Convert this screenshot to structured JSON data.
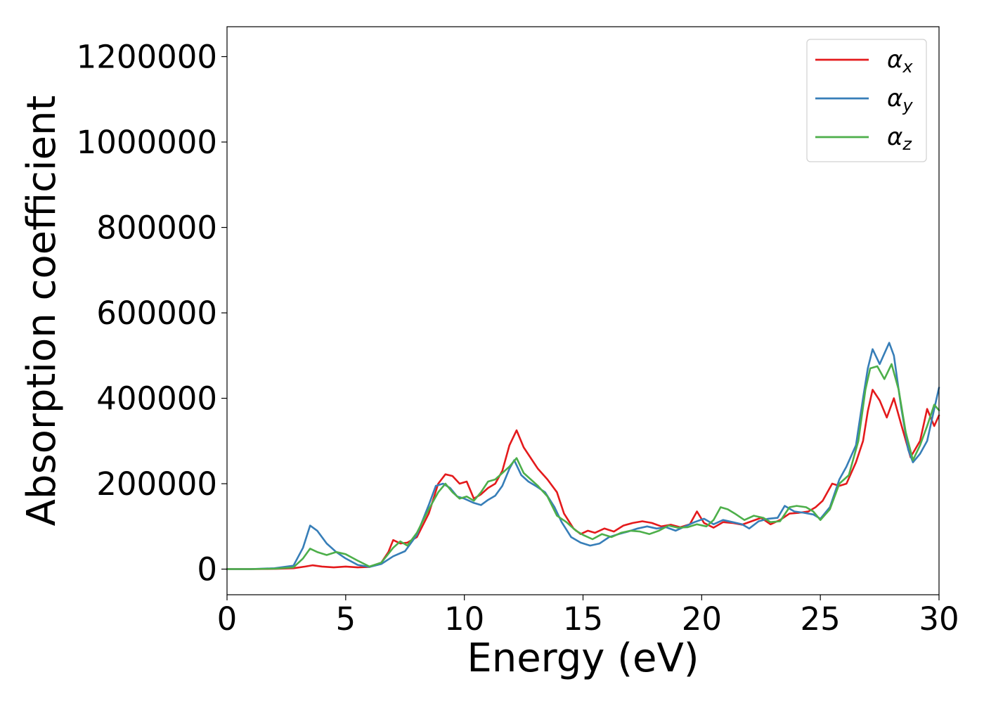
{
  "chart_data": {
    "type": "line",
    "title": "",
    "xlabel": "Energy (eV)",
    "ylabel": "Absorption coefficient",
    "xlim": [
      0,
      30
    ],
    "ylim": [
      -60000,
      1270000
    ],
    "x_ticks": [
      0,
      5,
      10,
      15,
      20,
      25,
      30
    ],
    "x_tick_labels": [
      "0",
      "5",
      "10",
      "15",
      "20",
      "25",
      "30"
    ],
    "y_ticks": [
      0,
      200000,
      400000,
      600000,
      800000,
      1000000,
      1200000
    ],
    "y_tick_labels": [
      "0",
      "200000",
      "400000",
      "600000",
      "800000",
      "1000000",
      "1200000"
    ],
    "grid": false,
    "legend_position": "top-right",
    "series": [
      {
        "name": "αx",
        "base": "α",
        "sub": "x",
        "color": "#e41a1c",
        "points": [
          [
            0,
            0
          ],
          [
            1,
            0
          ],
          [
            2,
            500
          ],
          [
            2.8,
            2000
          ],
          [
            3.3,
            6000
          ],
          [
            3.6,
            9000
          ],
          [
            4.0,
            6000
          ],
          [
            4.5,
            4000
          ],
          [
            5.0,
            6000
          ],
          [
            5.5,
            4000
          ],
          [
            6.0,
            5000
          ],
          [
            6.5,
            15000
          ],
          [
            6.8,
            40000
          ],
          [
            7.0,
            68000
          ],
          [
            7.3,
            60000
          ],
          [
            7.6,
            62000
          ],
          [
            8.0,
            75000
          ],
          [
            8.5,
            130000
          ],
          [
            8.9,
            200000
          ],
          [
            9.2,
            222000
          ],
          [
            9.5,
            218000
          ],
          [
            9.8,
            200000
          ],
          [
            10.1,
            205000
          ],
          [
            10.4,
            165000
          ],
          [
            10.7,
            175000
          ],
          [
            11.0,
            190000
          ],
          [
            11.3,
            200000
          ],
          [
            11.6,
            230000
          ],
          [
            11.9,
            290000
          ],
          [
            12.2,
            325000
          ],
          [
            12.5,
            285000
          ],
          [
            12.8,
            260000
          ],
          [
            13.1,
            235000
          ],
          [
            13.5,
            210000
          ],
          [
            13.9,
            180000
          ],
          [
            14.2,
            130000
          ],
          [
            14.6,
            95000
          ],
          [
            14.9,
            82000
          ],
          [
            15.2,
            90000
          ],
          [
            15.5,
            85000
          ],
          [
            15.9,
            95000
          ],
          [
            16.3,
            88000
          ],
          [
            16.7,
            102000
          ],
          [
            17.1,
            108000
          ],
          [
            17.5,
            112000
          ],
          [
            17.9,
            108000
          ],
          [
            18.3,
            100000
          ],
          [
            18.7,
            104000
          ],
          [
            19.1,
            98000
          ],
          [
            19.5,
            105000
          ],
          [
            19.8,
            135000
          ],
          [
            20.1,
            108000
          ],
          [
            20.5,
            97000
          ],
          [
            20.9,
            110000
          ],
          [
            21.3,
            108000
          ],
          [
            21.7,
            104000
          ],
          [
            22.1,
            112000
          ],
          [
            22.5,
            120000
          ],
          [
            22.9,
            105000
          ],
          [
            23.3,
            115000
          ],
          [
            23.7,
            130000
          ],
          [
            24.1,
            132000
          ],
          [
            24.5,
            135000
          ],
          [
            24.8,
            145000
          ],
          [
            25.1,
            160000
          ],
          [
            25.5,
            200000
          ],
          [
            25.8,
            195000
          ],
          [
            26.1,
            200000
          ],
          [
            26.5,
            250000
          ],
          [
            26.8,
            300000
          ],
          [
            27.0,
            370000
          ],
          [
            27.2,
            420000
          ],
          [
            27.5,
            395000
          ],
          [
            27.8,
            355000
          ],
          [
            28.1,
            400000
          ],
          [
            28.4,
            340000
          ],
          [
            28.8,
            262000
          ],
          [
            29.2,
            300000
          ],
          [
            29.5,
            375000
          ],
          [
            29.8,
            335000
          ],
          [
            30.0,
            360000
          ]
        ]
      },
      {
        "name": "αy",
        "base": "α",
        "sub": "y",
        "color": "#377eb8",
        "points": [
          [
            0,
            0
          ],
          [
            1,
            0
          ],
          [
            2,
            2000
          ],
          [
            2.8,
            8000
          ],
          [
            3.2,
            50000
          ],
          [
            3.5,
            102000
          ],
          [
            3.8,
            90000
          ],
          [
            4.2,
            60000
          ],
          [
            4.6,
            40000
          ],
          [
            5.0,
            25000
          ],
          [
            5.5,
            10000
          ],
          [
            6.0,
            5000
          ],
          [
            6.5,
            12000
          ],
          [
            7.0,
            30000
          ],
          [
            7.5,
            42000
          ],
          [
            8.0,
            80000
          ],
          [
            8.5,
            150000
          ],
          [
            8.8,
            195000
          ],
          [
            9.1,
            200000
          ],
          [
            9.4,
            190000
          ],
          [
            9.7,
            170000
          ],
          [
            10.0,
            165000
          ],
          [
            10.4,
            155000
          ],
          [
            10.7,
            150000
          ],
          [
            11.0,
            162000
          ],
          [
            11.3,
            172000
          ],
          [
            11.6,
            195000
          ],
          [
            11.9,
            235000
          ],
          [
            12.1,
            255000
          ],
          [
            12.4,
            220000
          ],
          [
            12.7,
            205000
          ],
          [
            13.0,
            195000
          ],
          [
            13.4,
            180000
          ],
          [
            13.8,
            145000
          ],
          [
            14.1,
            110000
          ],
          [
            14.5,
            75000
          ],
          [
            14.9,
            62000
          ],
          [
            15.3,
            55000
          ],
          [
            15.7,
            60000
          ],
          [
            16.1,
            75000
          ],
          [
            16.5,
            82000
          ],
          [
            16.9,
            88000
          ],
          [
            17.3,
            95000
          ],
          [
            17.7,
            100000
          ],
          [
            18.1,
            95000
          ],
          [
            18.5,
            98000
          ],
          [
            18.9,
            90000
          ],
          [
            19.3,
            100000
          ],
          [
            19.7,
            110000
          ],
          [
            20.1,
            118000
          ],
          [
            20.5,
            105000
          ],
          [
            20.9,
            115000
          ],
          [
            21.3,
            110000
          ],
          [
            21.7,
            105000
          ],
          [
            22.0,
            95000
          ],
          [
            22.4,
            112000
          ],
          [
            22.8,
            118000
          ],
          [
            23.2,
            120000
          ],
          [
            23.5,
            148000
          ],
          [
            23.9,
            135000
          ],
          [
            24.3,
            132000
          ],
          [
            24.7,
            128000
          ],
          [
            25.0,
            118000
          ],
          [
            25.4,
            145000
          ],
          [
            25.8,
            210000
          ],
          [
            26.1,
            240000
          ],
          [
            26.5,
            290000
          ],
          [
            26.8,
            400000
          ],
          [
            27.0,
            470000
          ],
          [
            27.2,
            515000
          ],
          [
            27.5,
            480000
          ],
          [
            27.7,
            505000
          ],
          [
            27.9,
            530000
          ],
          [
            28.1,
            500000
          ],
          [
            28.4,
            380000
          ],
          [
            28.7,
            280000
          ],
          [
            28.9,
            250000
          ],
          [
            29.2,
            270000
          ],
          [
            29.5,
            300000
          ],
          [
            29.8,
            375000
          ],
          [
            30.0,
            425000
          ]
        ]
      },
      {
        "name": "αz",
        "base": "α",
        "sub": "z",
        "color": "#4daf4a",
        "points": [
          [
            0,
            0
          ],
          [
            1,
            0
          ],
          [
            2,
            1000
          ],
          [
            2.8,
            4000
          ],
          [
            3.2,
            25000
          ],
          [
            3.5,
            48000
          ],
          [
            3.8,
            40000
          ],
          [
            4.2,
            33000
          ],
          [
            4.6,
            40000
          ],
          [
            5.0,
            35000
          ],
          [
            5.5,
            20000
          ],
          [
            6.0,
            6000
          ],
          [
            6.5,
            15000
          ],
          [
            7.0,
            50000
          ],
          [
            7.3,
            65000
          ],
          [
            7.6,
            55000
          ],
          [
            8.0,
            85000
          ],
          [
            8.5,
            140000
          ],
          [
            8.9,
            180000
          ],
          [
            9.2,
            200000
          ],
          [
            9.5,
            180000
          ],
          [
            9.8,
            165000
          ],
          [
            10.1,
            170000
          ],
          [
            10.4,
            160000
          ],
          [
            10.7,
            180000
          ],
          [
            11.0,
            205000
          ],
          [
            11.3,
            210000
          ],
          [
            11.6,
            225000
          ],
          [
            11.9,
            240000
          ],
          [
            12.2,
            260000
          ],
          [
            12.5,
            225000
          ],
          [
            12.8,
            210000
          ],
          [
            13.1,
            195000
          ],
          [
            13.5,
            170000
          ],
          [
            13.9,
            125000
          ],
          [
            14.3,
            110000
          ],
          [
            14.7,
            90000
          ],
          [
            15.0,
            80000
          ],
          [
            15.4,
            70000
          ],
          [
            15.8,
            82000
          ],
          [
            16.2,
            75000
          ],
          [
            16.6,
            85000
          ],
          [
            17.0,
            90000
          ],
          [
            17.4,
            88000
          ],
          [
            17.8,
            82000
          ],
          [
            18.2,
            90000
          ],
          [
            18.6,
            102000
          ],
          [
            19.0,
            97000
          ],
          [
            19.4,
            98000
          ],
          [
            19.8,
            105000
          ],
          [
            20.2,
            100000
          ],
          [
            20.5,
            115000
          ],
          [
            20.8,
            145000
          ],
          [
            21.1,
            140000
          ],
          [
            21.4,
            130000
          ],
          [
            21.8,
            115000
          ],
          [
            22.2,
            125000
          ],
          [
            22.6,
            120000
          ],
          [
            22.9,
            110000
          ],
          [
            23.3,
            112000
          ],
          [
            23.7,
            145000
          ],
          [
            24.0,
            148000
          ],
          [
            24.4,
            145000
          ],
          [
            24.7,
            135000
          ],
          [
            25.0,
            115000
          ],
          [
            25.4,
            140000
          ],
          [
            25.8,
            200000
          ],
          [
            26.2,
            220000
          ],
          [
            26.6,
            300000
          ],
          [
            26.9,
            420000
          ],
          [
            27.1,
            470000
          ],
          [
            27.4,
            475000
          ],
          [
            27.7,
            445000
          ],
          [
            28.0,
            480000
          ],
          [
            28.3,
            420000
          ],
          [
            28.6,
            320000
          ],
          [
            28.9,
            255000
          ],
          [
            29.2,
            290000
          ],
          [
            29.5,
            335000
          ],
          [
            29.8,
            385000
          ],
          [
            30.0,
            372000
          ]
        ]
      }
    ]
  }
}
